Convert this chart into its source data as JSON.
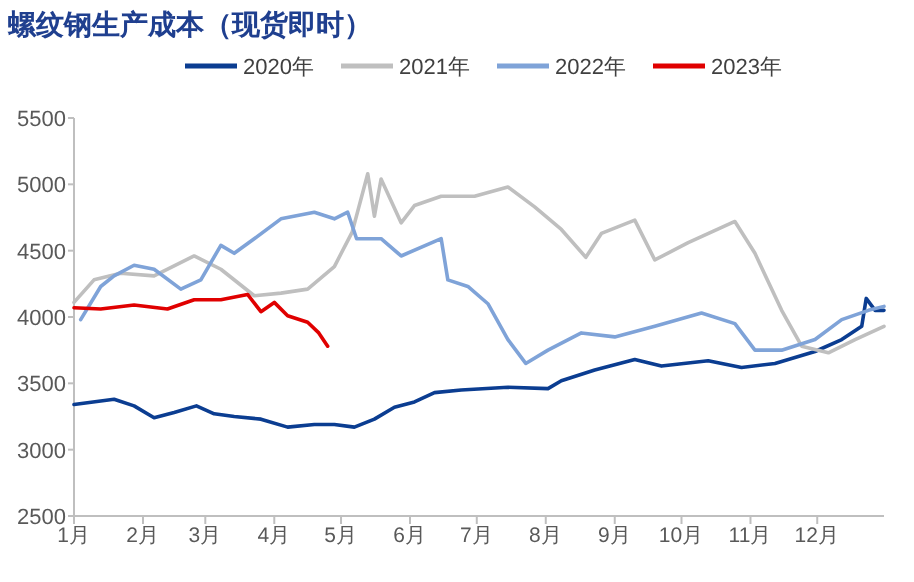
{
  "chart_data": {
    "type": "line",
    "title": "螺纹钢生产成本（现货即时）",
    "legend": "top",
    "grid": false,
    "marker": "none",
    "line_style": "solid",
    "xlim": [
      "--01-01",
      "--12-31"
    ],
    "ylim": [
      2500,
      5500
    ],
    "yticks": [
      2500,
      3000,
      3500,
      4000,
      4500,
      5000,
      5500
    ],
    "xticks": [
      {
        "value": "--01-01",
        "label": "1月"
      },
      {
        "value": "--02-01",
        "label": "2月"
      },
      {
        "value": "--03-01",
        "label": "3月"
      },
      {
        "value": "--04-01",
        "label": "4月"
      },
      {
        "value": "--05-01",
        "label": "5月"
      },
      {
        "value": "--06-01",
        "label": "6月"
      },
      {
        "value": "--07-01",
        "label": "7月"
      },
      {
        "value": "--08-01",
        "label": "8月"
      },
      {
        "value": "--09-01",
        "label": "9月"
      },
      {
        "value": "--10-01",
        "label": "10月"
      },
      {
        "value": "--11-01",
        "label": "11月"
      },
      {
        "value": "--12-01",
        "label": "12月"
      }
    ],
    "series": [
      {
        "name": "2020年",
        "color": "#0b3d91",
        "x": [
          "--01-01",
          "--01-19",
          "--01-28",
          "--02-06",
          "--02-15",
          "--02-25",
          "--03-05",
          "--03-14",
          "--03-26",
          "--04-07",
          "--04-19",
          "--04-28",
          "--05-07",
          "--05-16",
          "--05-25",
          "--06-03",
          "--06-12",
          "--06-24",
          "--07-15",
          "--08-02",
          "--08-08",
          "--08-23",
          "--09-10",
          "--09-22",
          "--10-13",
          "--10-28",
          "--11-12",
          "--11-30",
          "--12-12",
          "--12-21",
          "--12-23",
          "--12-27",
          "--12-31"
        ],
        "values": [
          3340,
          3380,
          3330,
          3240,
          3280,
          3330,
          3270,
          3250,
          3230,
          3170,
          3190,
          3190,
          3170,
          3230,
          3320,
          3360,
          3430,
          3450,
          3470,
          3460,
          3520,
          3600,
          3680,
          3630,
          3670,
          3620,
          3650,
          3740,
          3830,
          3930,
          4140,
          4050,
          4050
        ]
      },
      {
        "name": "2021年",
        "color": "#bfbfbf",
        "x": [
          "--01-01",
          "--01-10",
          "--01-22",
          "--02-06",
          "--02-24",
          "--03-08",
          "--03-23",
          "--04-04",
          "--04-16",
          "--04-28",
          "--05-06",
          "--05-13",
          "--05-16",
          "--05-19",
          "--05-28",
          "--06-03",
          "--06-15",
          "--06-30",
          "--07-15",
          "--07-27",
          "--08-08",
          "--08-19",
          "--08-26",
          "--09-10",
          "--09-19",
          "--10-04",
          "--10-25",
          "--11-03",
          "--11-15",
          "--11-24",
          "--12-06",
          "--12-18",
          "--12-31"
        ],
        "values": [
          4110,
          4280,
          4330,
          4310,
          4460,
          4360,
          4160,
          4180,
          4210,
          4380,
          4640,
          5080,
          4760,
          5040,
          4710,
          4840,
          4910,
          4910,
          4980,
          4830,
          4660,
          4450,
          4630,
          4730,
          4430,
          4560,
          4720,
          4480,
          4050,
          3780,
          3730,
          3830,
          3930
        ]
      },
      {
        "name": "2022年",
        "color": "#7fa3d8",
        "x": [
          "--01-04",
          "--01-13",
          "--01-19",
          "--01-28",
          "--02-06",
          "--02-18",
          "--02-27",
          "--03-08",
          "--03-14",
          "--03-23",
          "--04-04",
          "--04-19",
          "--04-28",
          "--05-04",
          "--05-08",
          "--05-19",
          "--05-28",
          "--06-15",
          "--06-18",
          "--06-27",
          "--07-06",
          "--07-15",
          "--07-23",
          "--08-02",
          "--08-17",
          "--09-01",
          "--09-19",
          "--10-10",
          "--10-25",
          "--11-03",
          "--11-15",
          "--11-30",
          "--12-12",
          "--12-24",
          "--12-31"
        ],
        "values": [
          3980,
          4230,
          4310,
          4390,
          4360,
          4210,
          4280,
          4540,
          4480,
          4590,
          4740,
          4790,
          4740,
          4790,
          4590,
          4590,
          4460,
          4590,
          4280,
          4230,
          4100,
          3830,
          3650,
          3750,
          3880,
          3850,
          3930,
          4030,
          3950,
          3750,
          3750,
          3830,
          3980,
          4050,
          4080
        ]
      },
      {
        "name": "2023年",
        "color": "#e00000",
        "x": [
          "--01-01",
          "--01-13",
          "--01-28",
          "--02-12",
          "--02-24",
          "--03-08",
          "--03-20",
          "--03-26",
          "--04-01",
          "--04-07",
          "--04-16",
          "--04-21",
          "--04-25"
        ],
        "values": [
          4070,
          4060,
          4090,
          4060,
          4130,
          4130,
          4170,
          4040,
          4110,
          4010,
          3960,
          3880,
          3780
        ]
      }
    ]
  }
}
